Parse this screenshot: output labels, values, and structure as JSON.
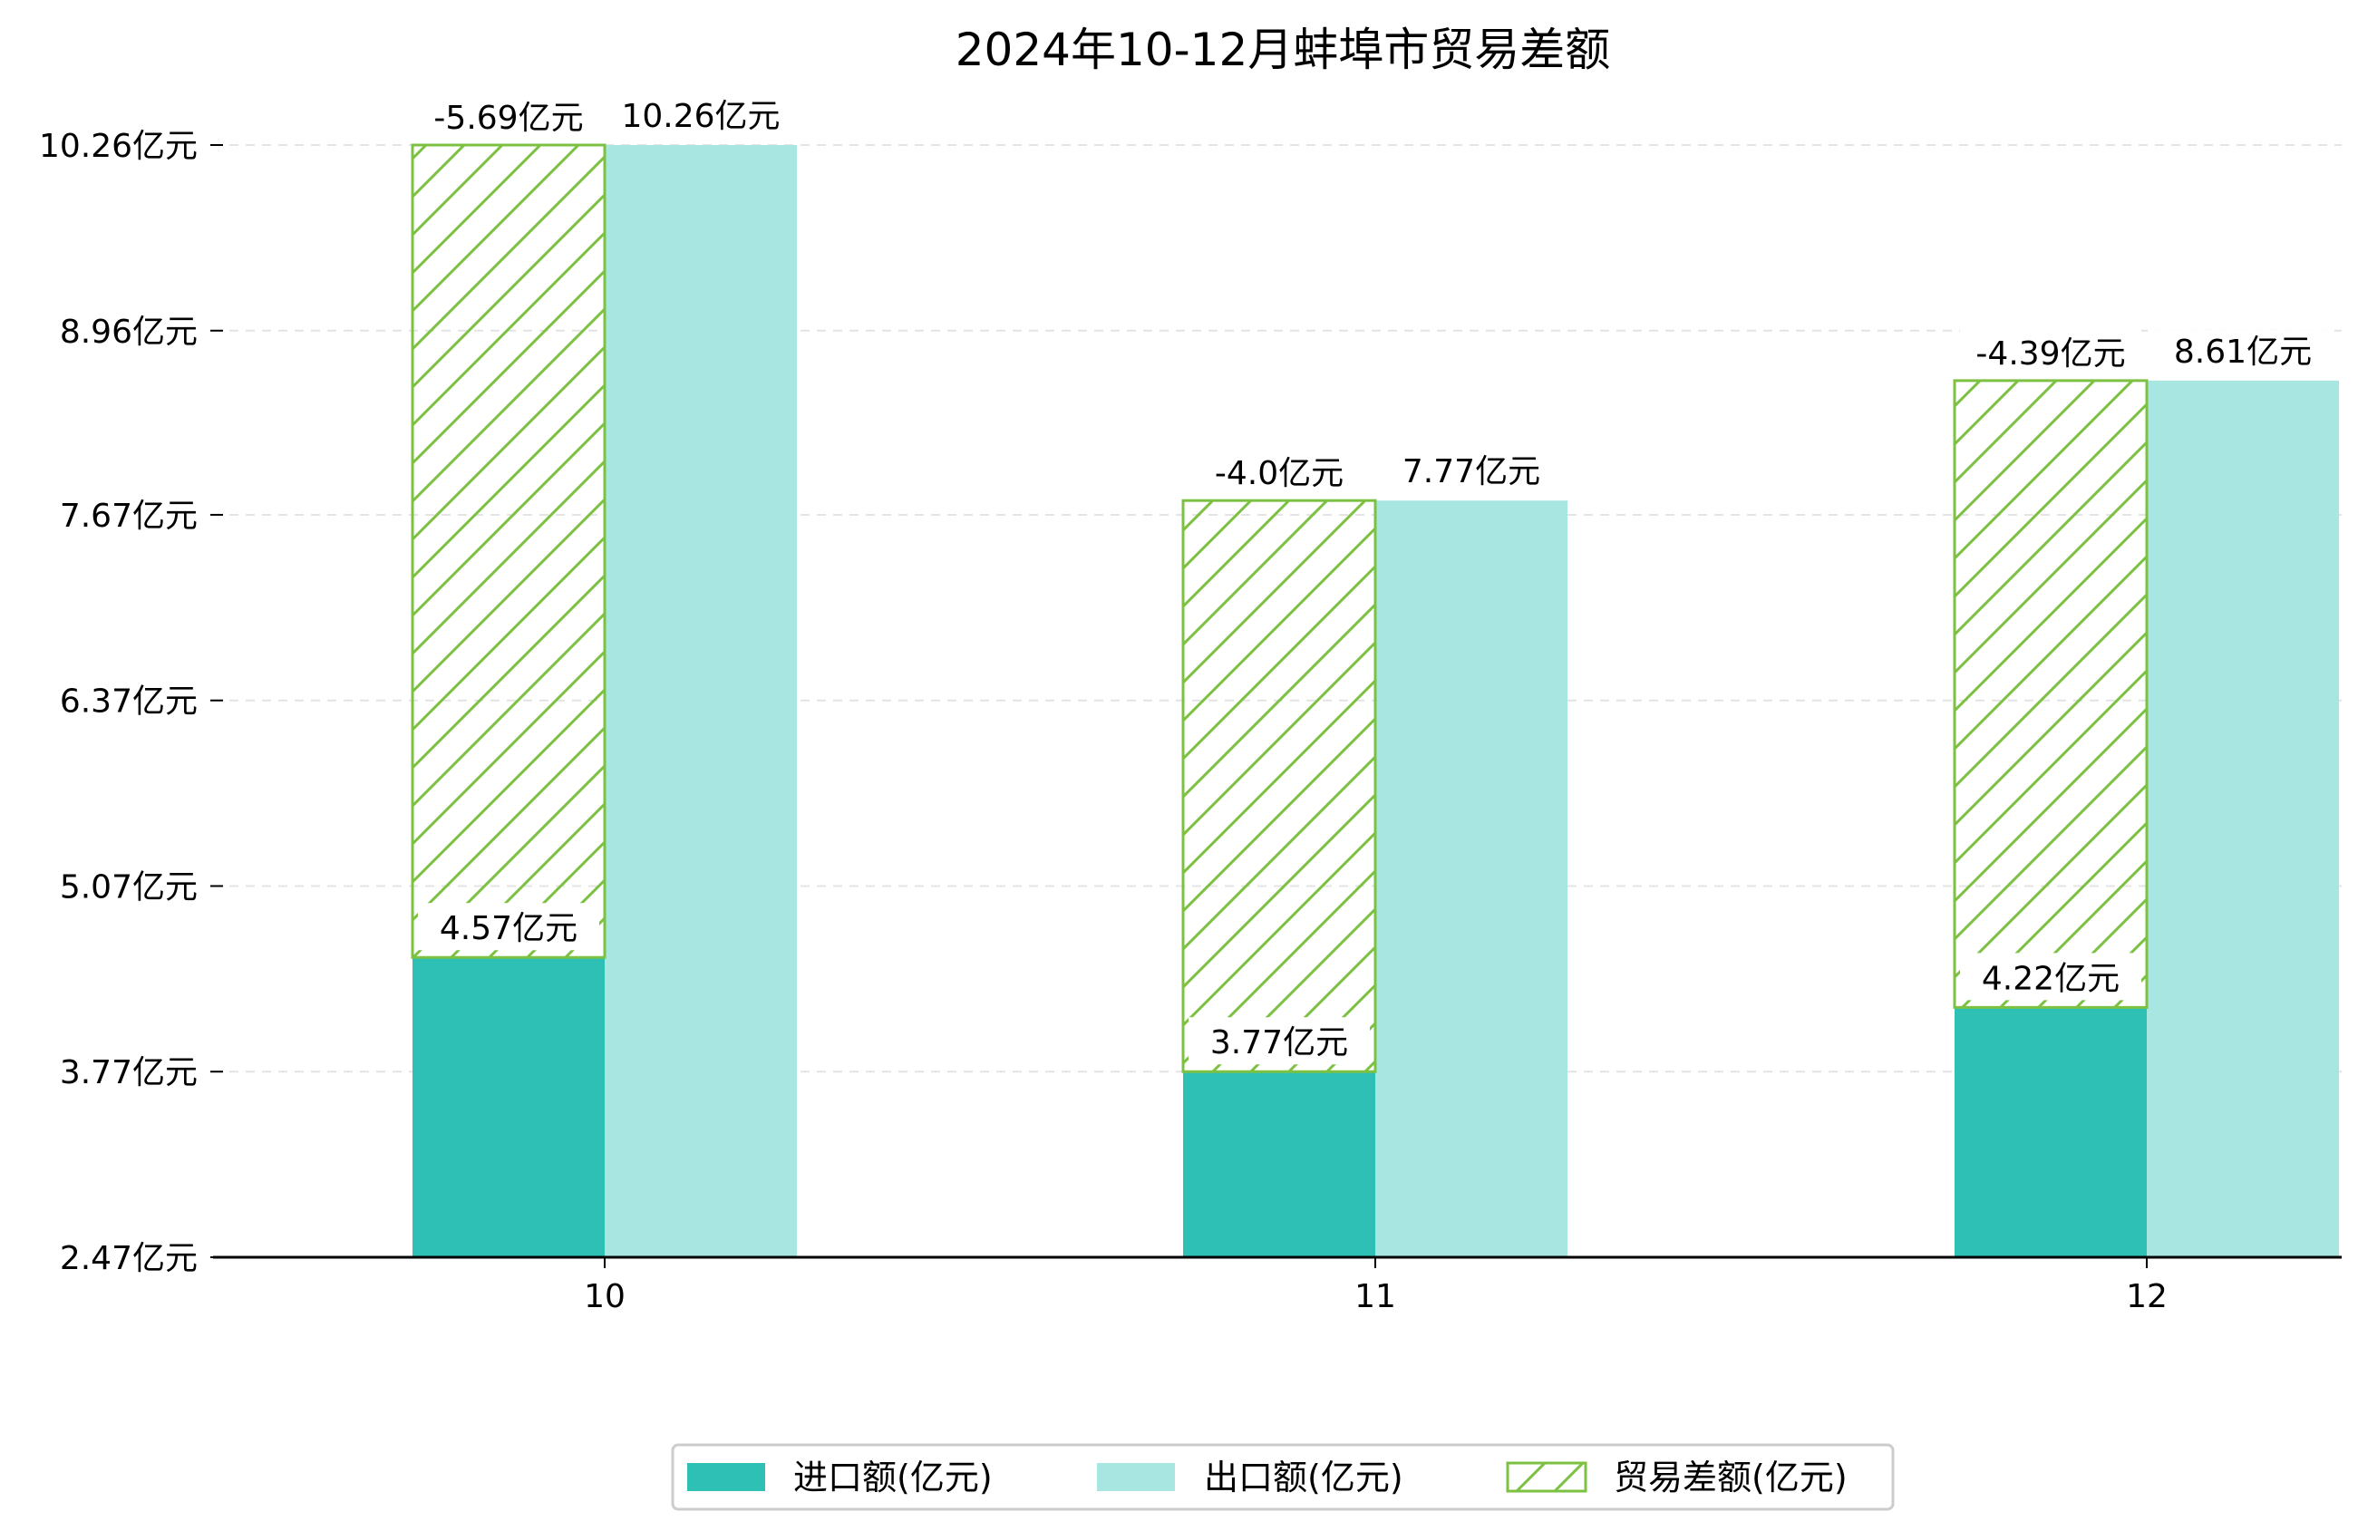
{
  "chart_data": {
    "type": "bar",
    "title": "2024年10-12月蚌埠市贸易差额",
    "categories": [
      "10",
      "11",
      "12"
    ],
    "series": [
      {
        "name": "进口额(亿元)",
        "values": [
          4.57,
          3.77,
          4.22
        ],
        "color": "#2ec0b4",
        "labels": [
          "4.57亿元",
          "3.77亿元",
          "4.22亿元"
        ]
      },
      {
        "name": "出口额(亿元)",
        "values": [
          10.26,
          7.77,
          8.61
        ],
        "color": "#a8e6e1",
        "labels": [
          "10.26亿元",
          "7.77亿元",
          "8.61亿元"
        ]
      },
      {
        "name": "贸易差额(亿元)",
        "values": [
          -5.69,
          -4.0,
          -4.39
        ],
        "color": "#7dc142",
        "labels": [
          "-5.69亿元",
          "-4.0亿元",
          "-4.39亿元"
        ]
      }
    ],
    "yticks": [
      "2.47亿元",
      "3.77亿元",
      "5.07亿元",
      "6.37亿元",
      "7.67亿元",
      "8.96亿元",
      "10.26亿元"
    ],
    "ytick_values": [
      2.47,
      3.77,
      5.07,
      6.37,
      7.67,
      8.96,
      10.26
    ],
    "ylim": [
      2.47,
      10.26
    ],
    "grid": true,
    "legend_position": "bottom-center",
    "xlabel": "",
    "ylabel": ""
  }
}
